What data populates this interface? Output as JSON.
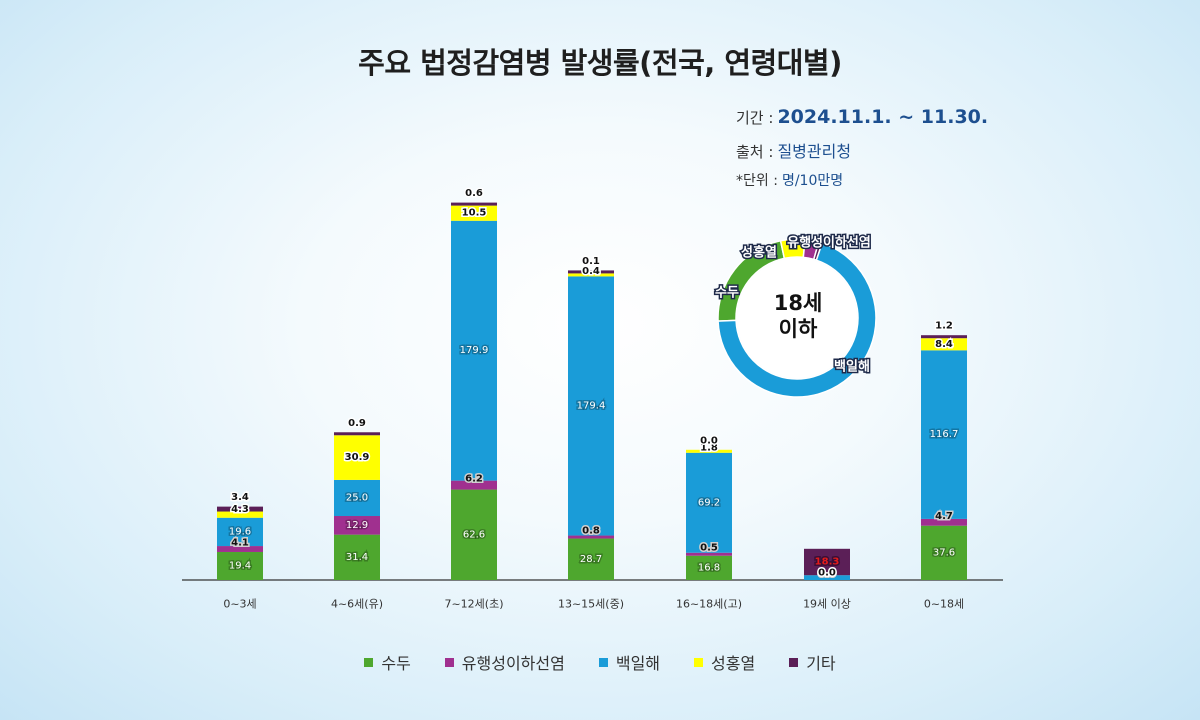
{
  "header": {
    "title": "주요 법정감염병 발생률(전국, 연령대별)",
    "period_label": "기간 :",
    "period_value": "2024.11.1. ~ 11.30.",
    "source_label": "출처 :",
    "source_value": "질병관리청",
    "unit_label": "*단위 :",
    "unit_value": "명/10만명"
  },
  "colors": {
    "수두": "#4ea72e",
    "유행성이하선염": "#a0308f",
    "백일해": "#1a9cd8",
    "성홍열": "#ffff00",
    "기타": "#5b1f57"
  },
  "chart_data": {
    "type": "bar",
    "stacked": true,
    "categories": [
      "0~3세",
      "4~6세(유)",
      "7~12세(초)",
      "13~15세(중)",
      "16~18세(고)",
      "19세 이상",
      "0~18세"
    ],
    "series": [
      {
        "name": "수두",
        "values": [
          19.4,
          31.4,
          62.6,
          28.7,
          16.8,
          0.0,
          37.6
        ]
      },
      {
        "name": "유행성이하선염",
        "values": [
          4.1,
          12.9,
          6.2,
          0.8,
          0.5,
          0.0,
          4.7
        ]
      },
      {
        "name": "백일해",
        "values": [
          19.6,
          25.0,
          179.9,
          179.4,
          69.2,
          3.3,
          116.7
        ]
      },
      {
        "name": "성홍열",
        "values": [
          4.3,
          30.9,
          10.5,
          0.4,
          1.8,
          0.0,
          8.4
        ]
      },
      {
        "name": "기타",
        "values": [
          3.4,
          0.9,
          0.6,
          0.1,
          0.0,
          18.3,
          1.2
        ]
      }
    ],
    "data_labels": [
      [
        "19.4",
        "4.1",
        "19.6",
        "4.3",
        "3.4"
      ],
      [
        "31.4",
        "12.9",
        "25.0",
        "30.9",
        "0.9"
      ],
      [
        "62.6",
        "6.2",
        "179.9",
        "10.5",
        "0.6"
      ],
      [
        "28.7",
        "0.8",
        "179.4",
        "0.4",
        "0.1"
      ],
      [
        "16.8",
        "0.5",
        "69.2",
        "1.8",
        "0.0"
      ],
      [
        "0.0",
        "0.0",
        "",
        "0.0",
        "18.3"
      ],
      [
        "37.6",
        "4.7",
        "116.7",
        "8.4",
        "1.2"
      ]
    ],
    "ylim": [
      0,
      270
    ],
    "grid": false,
    "legend": "bottom-center",
    "donut": {
      "center_line1": "18세",
      "center_line2": "이하",
      "slices": [
        {
          "name": "수두",
          "value": 37.6
        },
        {
          "name": "유행성이하선염",
          "value": 4.7
        },
        {
          "name": "백일해",
          "value": 116.7
        },
        {
          "name": "성홍열",
          "value": 8.4
        },
        {
          "name": "기타",
          "value": 1.2
        }
      ],
      "labels": [
        "수두",
        "유행성이하선염",
        "백일해",
        "성홍열"
      ]
    }
  },
  "legend": {
    "items": [
      "수두",
      "유행성이하선염",
      "백일해",
      "성홍열",
      "기타"
    ]
  }
}
